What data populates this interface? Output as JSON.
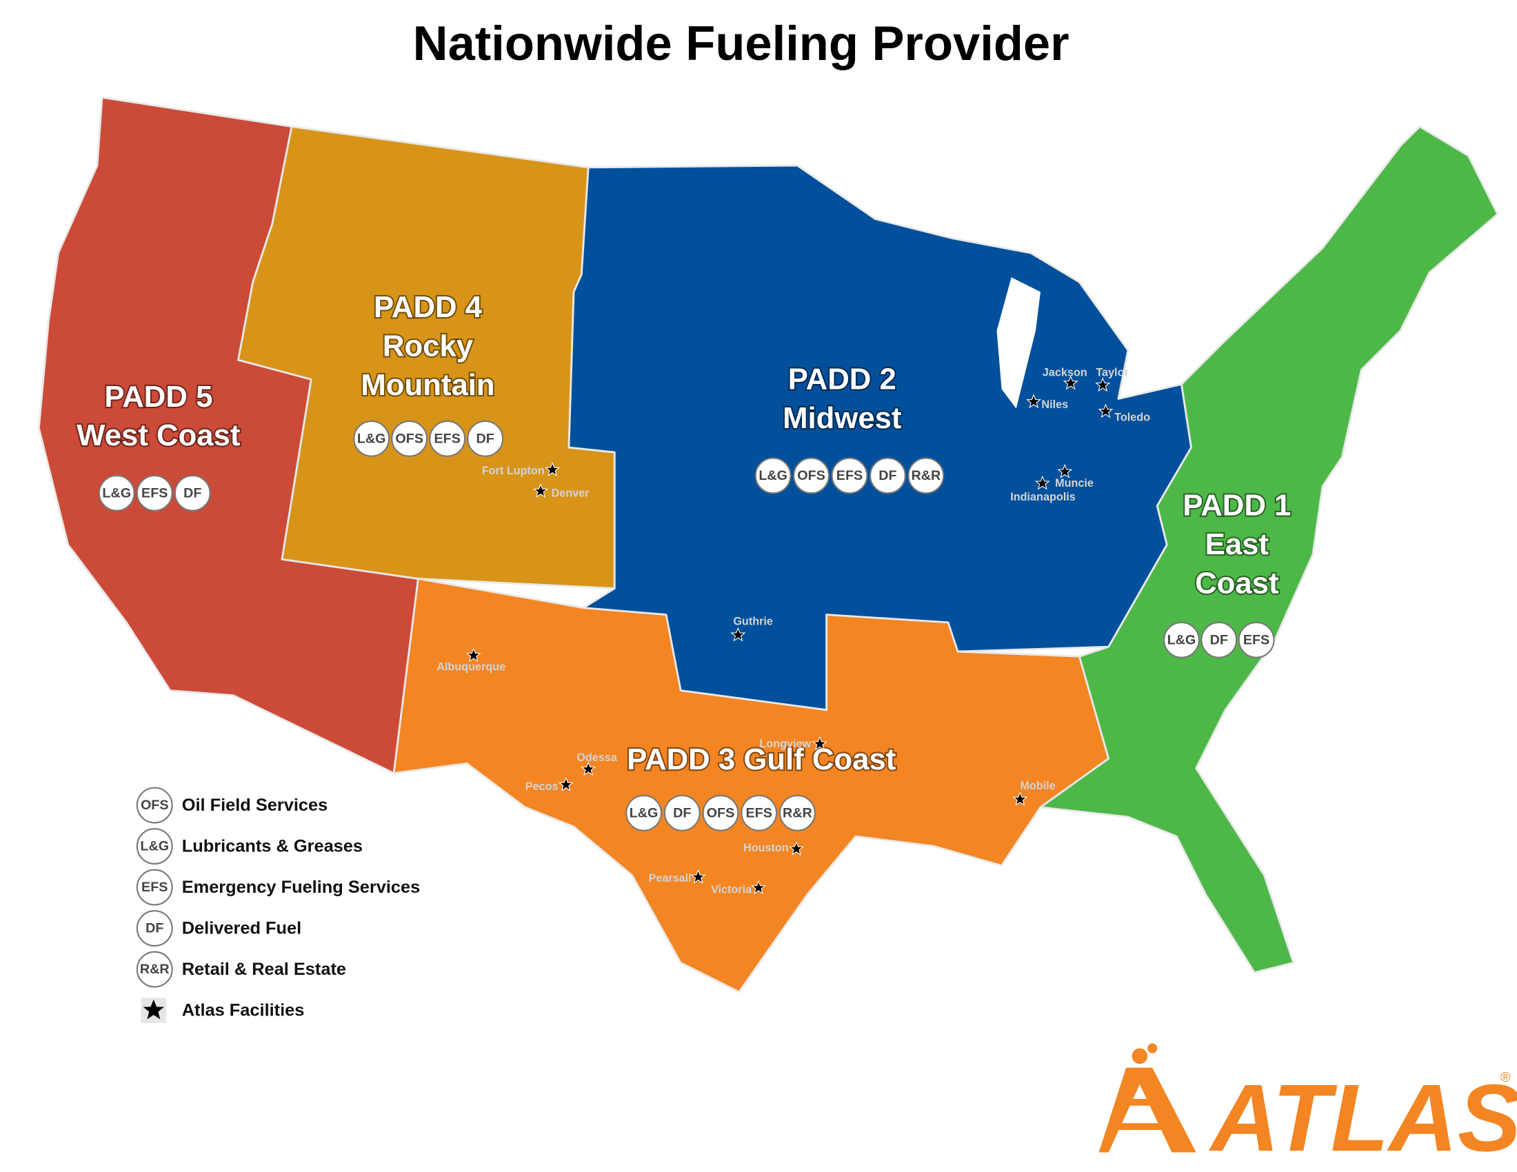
{
  "title": "Nationwide Fueling Provider",
  "regions": [
    {
      "name_lines": [
        "PADD 5",
        "West Coast"
      ],
      "services": [
        "L&G",
        "EFS",
        "DF"
      ]
    },
    {
      "name_lines": [
        "PADD 4",
        "Rocky",
        "Mountain"
      ],
      "services": [
        "L&G",
        "OFS",
        "EFS",
        "DF"
      ]
    },
    {
      "name_lines": [
        "PADD 2",
        "Midwest"
      ],
      "services": [
        "L&G",
        "OFS",
        "EFS",
        "DF",
        "R&R"
      ]
    },
    {
      "name_lines": [
        "PADD 3  Gulf Coast"
      ],
      "services": [
        "L&G",
        "DF",
        "OFS",
        "EFS",
        "R&R"
      ]
    },
    {
      "name_lines": [
        "PADD 1",
        "East",
        "Coast"
      ],
      "services": [
        "L&G",
        "DF",
        "EFS"
      ]
    }
  ],
  "facilities": [
    "Fort Lupton",
    "Denver",
    "Jackson",
    "Taylor",
    "Niles",
    "Toledo",
    "Muncie",
    "Indianapolis",
    "Guthrie",
    "Albuquerque",
    "Longview",
    "Odessa",
    "Pecos",
    "Mobile",
    "Houston",
    "Pearsall",
    "Victoria"
  ],
  "legend": [
    {
      "badge": "OFS",
      "label": "Oil Field Services"
    },
    {
      "badge": "L&G",
      "label": "Lubricants & Greases"
    },
    {
      "badge": "EFS",
      "label": "Emergency Fueling Services"
    },
    {
      "badge": "DF",
      "label": "Delivered Fuel"
    },
    {
      "badge": "R&R",
      "label": "Retail & Real Estate"
    },
    {
      "label": "Atlas Facilities"
    }
  ],
  "logo": {
    "text": "ATLAS",
    "mark": "®"
  }
}
